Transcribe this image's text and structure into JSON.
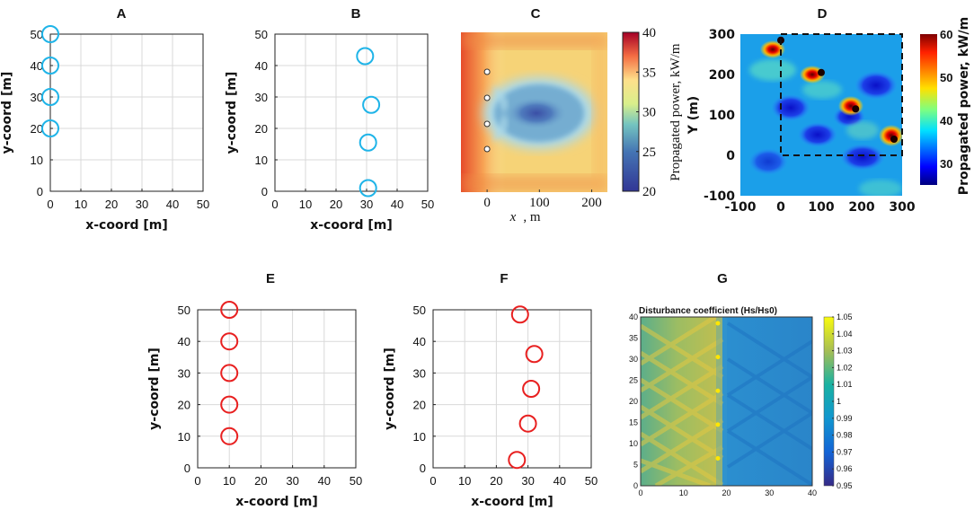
{
  "chart_data": [
    {
      "panel": "A",
      "type": "scatter",
      "xlabel": "x-coord [m]",
      "ylabel": "y-coord [m]",
      "xlim": [
        0,
        50
      ],
      "ylim": [
        0,
        50
      ],
      "xticks": [
        0,
        10,
        20,
        30,
        40,
        50
      ],
      "yticks": [
        0,
        10,
        20,
        30,
        40,
        50
      ],
      "grid": true,
      "marker": "circle",
      "color": "#1fb4e8",
      "points": [
        {
          "x": 0,
          "y": 50
        },
        {
          "x": 0,
          "y": 40
        },
        {
          "x": 0,
          "y": 30
        },
        {
          "x": 0,
          "y": 20
        }
      ]
    },
    {
      "panel": "B",
      "type": "scatter",
      "xlabel": "x-coord [m]",
      "ylabel": "y-coord [m]",
      "xlim": [
        0,
        50
      ],
      "ylim": [
        0,
        50
      ],
      "xticks": [
        0,
        10,
        20,
        30,
        40,
        50
      ],
      "yticks": [
        0,
        10,
        20,
        30,
        40,
        50
      ],
      "grid": true,
      "marker": "circle",
      "color": "#1fb4e8",
      "points": [
        {
          "x": 29.5,
          "y": 43
        },
        {
          "x": 31.5,
          "y": 27.5
        },
        {
          "x": 30.5,
          "y": 15.5
        },
        {
          "x": 30.5,
          "y": 1
        }
      ]
    },
    {
      "panel": "C",
      "type": "heatmap",
      "xlabel": "x, m",
      "xlim": [
        -50,
        230
      ],
      "xticks": [
        0,
        100,
        200
      ],
      "colorbar_label": "Propagated power, kW/m",
      "colorbar_range": [
        20,
        40
      ],
      "colorbar_ticks": [
        20,
        25,
        30,
        35,
        40
      ],
      "devices": [
        {
          "x": 0,
          "y": 38
        },
        {
          "x": 0,
          "y": 30
        },
        {
          "x": 0,
          "y": 22
        },
        {
          "x": 0,
          "y": 13
        }
      ]
    },
    {
      "panel": "D",
      "type": "heatmap",
      "xlabel": "",
      "ylabel": "Y (m)",
      "xlim": [
        -100,
        300
      ],
      "ylim": [
        -100,
        300
      ],
      "xticks": [
        -100,
        0,
        100,
        200,
        300
      ],
      "yticks": [
        -100,
        0,
        100,
        200,
        300
      ],
      "colorbar_label": "Propagated power, kW/m",
      "colorbar_range": [
        25,
        60
      ],
      "colorbar_ticks": [
        30,
        40,
        50,
        60
      ],
      "devices": [
        {
          "x": 0,
          "y": 285
        },
        {
          "x": 100,
          "y": 205
        },
        {
          "x": 185,
          "y": 115
        },
        {
          "x": 280,
          "y": 40
        }
      ],
      "dashed_box": {
        "x": [
          0,
          300
        ],
        "y": [
          0,
          300
        ]
      }
    },
    {
      "panel": "E",
      "type": "scatter",
      "xlabel": "x-coord [m]",
      "ylabel": "y-coord [m]",
      "xlim": [
        0,
        50
      ],
      "ylim": [
        0,
        50
      ],
      "xticks": [
        0,
        10,
        20,
        30,
        40,
        50
      ],
      "yticks": [
        0,
        10,
        20,
        30,
        40,
        50
      ],
      "grid": true,
      "marker": "circle",
      "color": "#e82020",
      "points": [
        {
          "x": 10,
          "y": 50
        },
        {
          "x": 10,
          "y": 40
        },
        {
          "x": 10,
          "y": 30
        },
        {
          "x": 10,
          "y": 20
        },
        {
          "x": 10,
          "y": 10
        }
      ]
    },
    {
      "panel": "F",
      "type": "scatter",
      "xlabel": "x-coord [m]",
      "ylabel": "y-coord [m]",
      "xlim": [
        0,
        50
      ],
      "ylim": [
        0,
        50
      ],
      "xticks": [
        0,
        10,
        20,
        30,
        40,
        50
      ],
      "yticks": [
        0,
        10,
        20,
        30,
        40,
        50
      ],
      "grid": true,
      "marker": "circle",
      "color": "#e82020",
      "points": [
        {
          "x": 27.5,
          "y": 48.5
        },
        {
          "x": 32,
          "y": 36
        },
        {
          "x": 31,
          "y": 25
        },
        {
          "x": 30,
          "y": 14
        },
        {
          "x": 26.5,
          "y": 2.5
        }
      ]
    },
    {
      "panel": "G",
      "type": "heatmap",
      "title": "Disturbance coefficient (Hs/Hs0)",
      "xlim": [
        0,
        40
      ],
      "ylim": [
        0,
        40
      ],
      "xticks": [
        0,
        10,
        20,
        30,
        40
      ],
      "yticks": [
        0,
        5,
        10,
        15,
        20,
        25,
        30,
        35,
        40
      ],
      "colorbar_range": [
        0.95,
        1.05
      ],
      "colorbar_ticks": [
        "0.95",
        "0.96",
        "0.97",
        "0.98",
        "0.99",
        "1",
        "1.01",
        "1.02",
        "1.03",
        "1.04",
        "1.05"
      ],
      "devices": [
        {
          "x": 18,
          "y": 38.5
        },
        {
          "x": 18,
          "y": 30.5
        },
        {
          "x": 18,
          "y": 22.5
        },
        {
          "x": 18,
          "y": 14.5
        },
        {
          "x": 18,
          "y": 6.5
        }
      ]
    }
  ]
}
